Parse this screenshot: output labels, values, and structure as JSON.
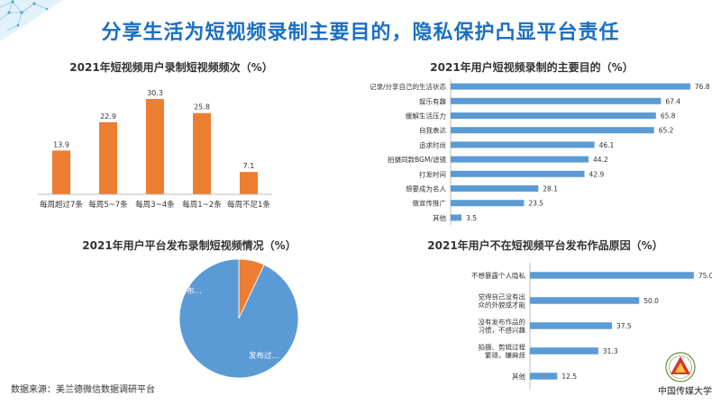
{
  "title": "分享生活为短视频录制主要目的，隐私保护凸显平台责任",
  "source": "数据来源：美兰德微信数据调研平台",
  "logo_text": "中国传媒大学",
  "colors": {
    "orange": "#ed7d31",
    "blue": "#5b9bd5",
    "title_blue": "#1a6fc4"
  },
  "chart_data": [
    {
      "type": "bar",
      "title": "2021年短视频用户录制短视频频次（%）",
      "categories": [
        "每周超过7条",
        "每周5~7条",
        "每周3~4条",
        "每周1~2条",
        "每周不足1条"
      ],
      "values": [
        13.9,
        22.9,
        30.3,
        25.8,
        7.1
      ],
      "color": "#ed7d31",
      "ylim": [
        0,
        32
      ]
    },
    {
      "type": "bar",
      "orientation": "horizontal",
      "title": "2021年用户短视频录制的主要目的（%）",
      "categories": [
        "记录/分享自己的生活状态",
        "娱乐有趣",
        "缓解生活压力",
        "自我表达",
        "追求时尚",
        "拍摄同款BGM/滤镜",
        "打发时间",
        "想要成为名人",
        "做宣传推广",
        "其他"
      ],
      "values": [
        76.8,
        67.4,
        65.8,
        65.2,
        46.1,
        44.2,
        42.9,
        28.1,
        23.5,
        3.5
      ],
      "color": "#5b9bd5",
      "xlim": [
        0,
        80
      ]
    },
    {
      "type": "pie",
      "title": "2021年用户平台发布录制短视频情况（%）",
      "labels": [
        "未发布…",
        "发布过…"
      ],
      "values": [
        7,
        93
      ],
      "colors": [
        "#ed7d31",
        "#5b9bd5"
      ]
    },
    {
      "type": "bar",
      "orientation": "horizontal",
      "title": "2021年用户不在短视频平台发布作品原因（%）",
      "categories": [
        [
          "不想暴露个人隐私"
        ],
        [
          "觉得自己没有出",
          "众的外貌或才能"
        ],
        [
          "没有发布作品的",
          "习惯，不感兴趣"
        ],
        [
          "拍摄、剪辑过程",
          "繁琐，嫌麻烦"
        ],
        [
          "其他"
        ]
      ],
      "values": [
        75.0,
        50.0,
        37.5,
        31.3,
        12.5
      ],
      "color": "#5b9bd5",
      "xlim": [
        0,
        80
      ]
    }
  ]
}
